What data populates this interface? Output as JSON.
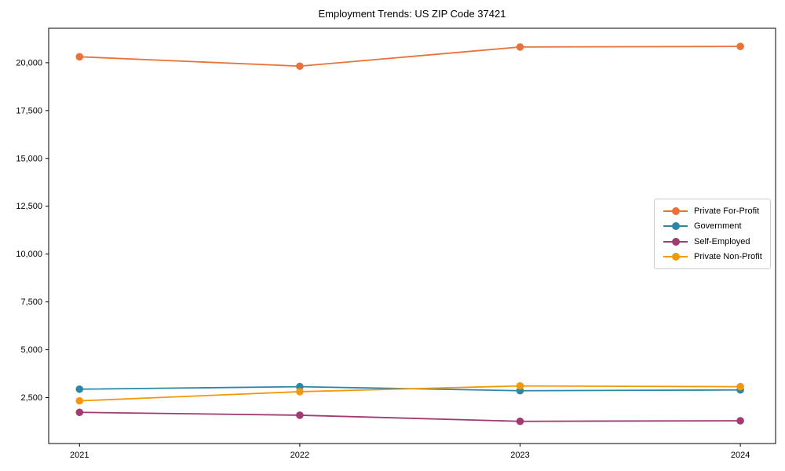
{
  "chart_data": {
    "type": "line",
    "title": "Employment Trends: US ZIP Code 37421",
    "xlabel": "",
    "ylabel": "",
    "x": [
      2021,
      2022,
      2023,
      2024
    ],
    "x_tick_labels": [
      "2021",
      "2022",
      "2023",
      "2024"
    ],
    "y_ticks": [
      2500,
      5000,
      7500,
      10000,
      12500,
      15000,
      17500,
      20000
    ],
    "y_tick_labels": [
      "2,500",
      "5,000",
      "7,500",
      "10,000",
      "12,500",
      "15,000",
      "17,500",
      "20,000"
    ],
    "xlim": [
      2020.86,
      2024.16
    ],
    "ylim": [
      100,
      21800
    ],
    "grid": false,
    "legend_position": "center-right",
    "frame_color": "#000000",
    "series": [
      {
        "name": "Private For-Profit",
        "color": "#E8733A",
        "values": [
          20310,
          19820,
          20820,
          20850
        ]
      },
      {
        "name": "Government",
        "color": "#2E86A6",
        "values": [
          2940,
          3070,
          2860,
          2900
        ]
      },
      {
        "name": "Self-Employed",
        "color": "#A23B72",
        "values": [
          1730,
          1580,
          1260,
          1290
        ]
      },
      {
        "name": "Private Non-Profit",
        "color": "#F1990A",
        "values": [
          2330,
          2810,
          3110,
          3070
        ]
      }
    ]
  }
}
